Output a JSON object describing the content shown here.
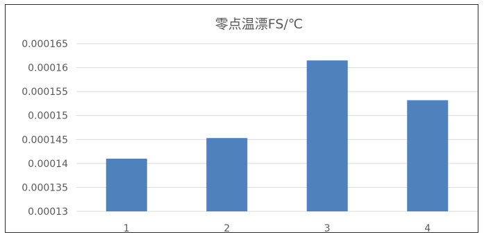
{
  "chart_data": {
    "type": "bar",
    "title": "零点温漂FS/℃",
    "categories": [
      "1",
      "2",
      "3",
      "4"
    ],
    "values": [
      0.000141,
      0.0001453,
      0.0001615,
      0.0001532
    ],
    "ylim": [
      0.00013,
      0.000165
    ],
    "yticks": [
      "0.00013",
      "0.000135",
      "0.00014",
      "0.000145",
      "0.00015",
      "0.000155",
      "0.00016",
      "0.000165"
    ],
    "grid": true,
    "bar_color": "#4f81bd",
    "grid_color": "#d9d9d9",
    "xlabel": "",
    "ylabel": ""
  }
}
